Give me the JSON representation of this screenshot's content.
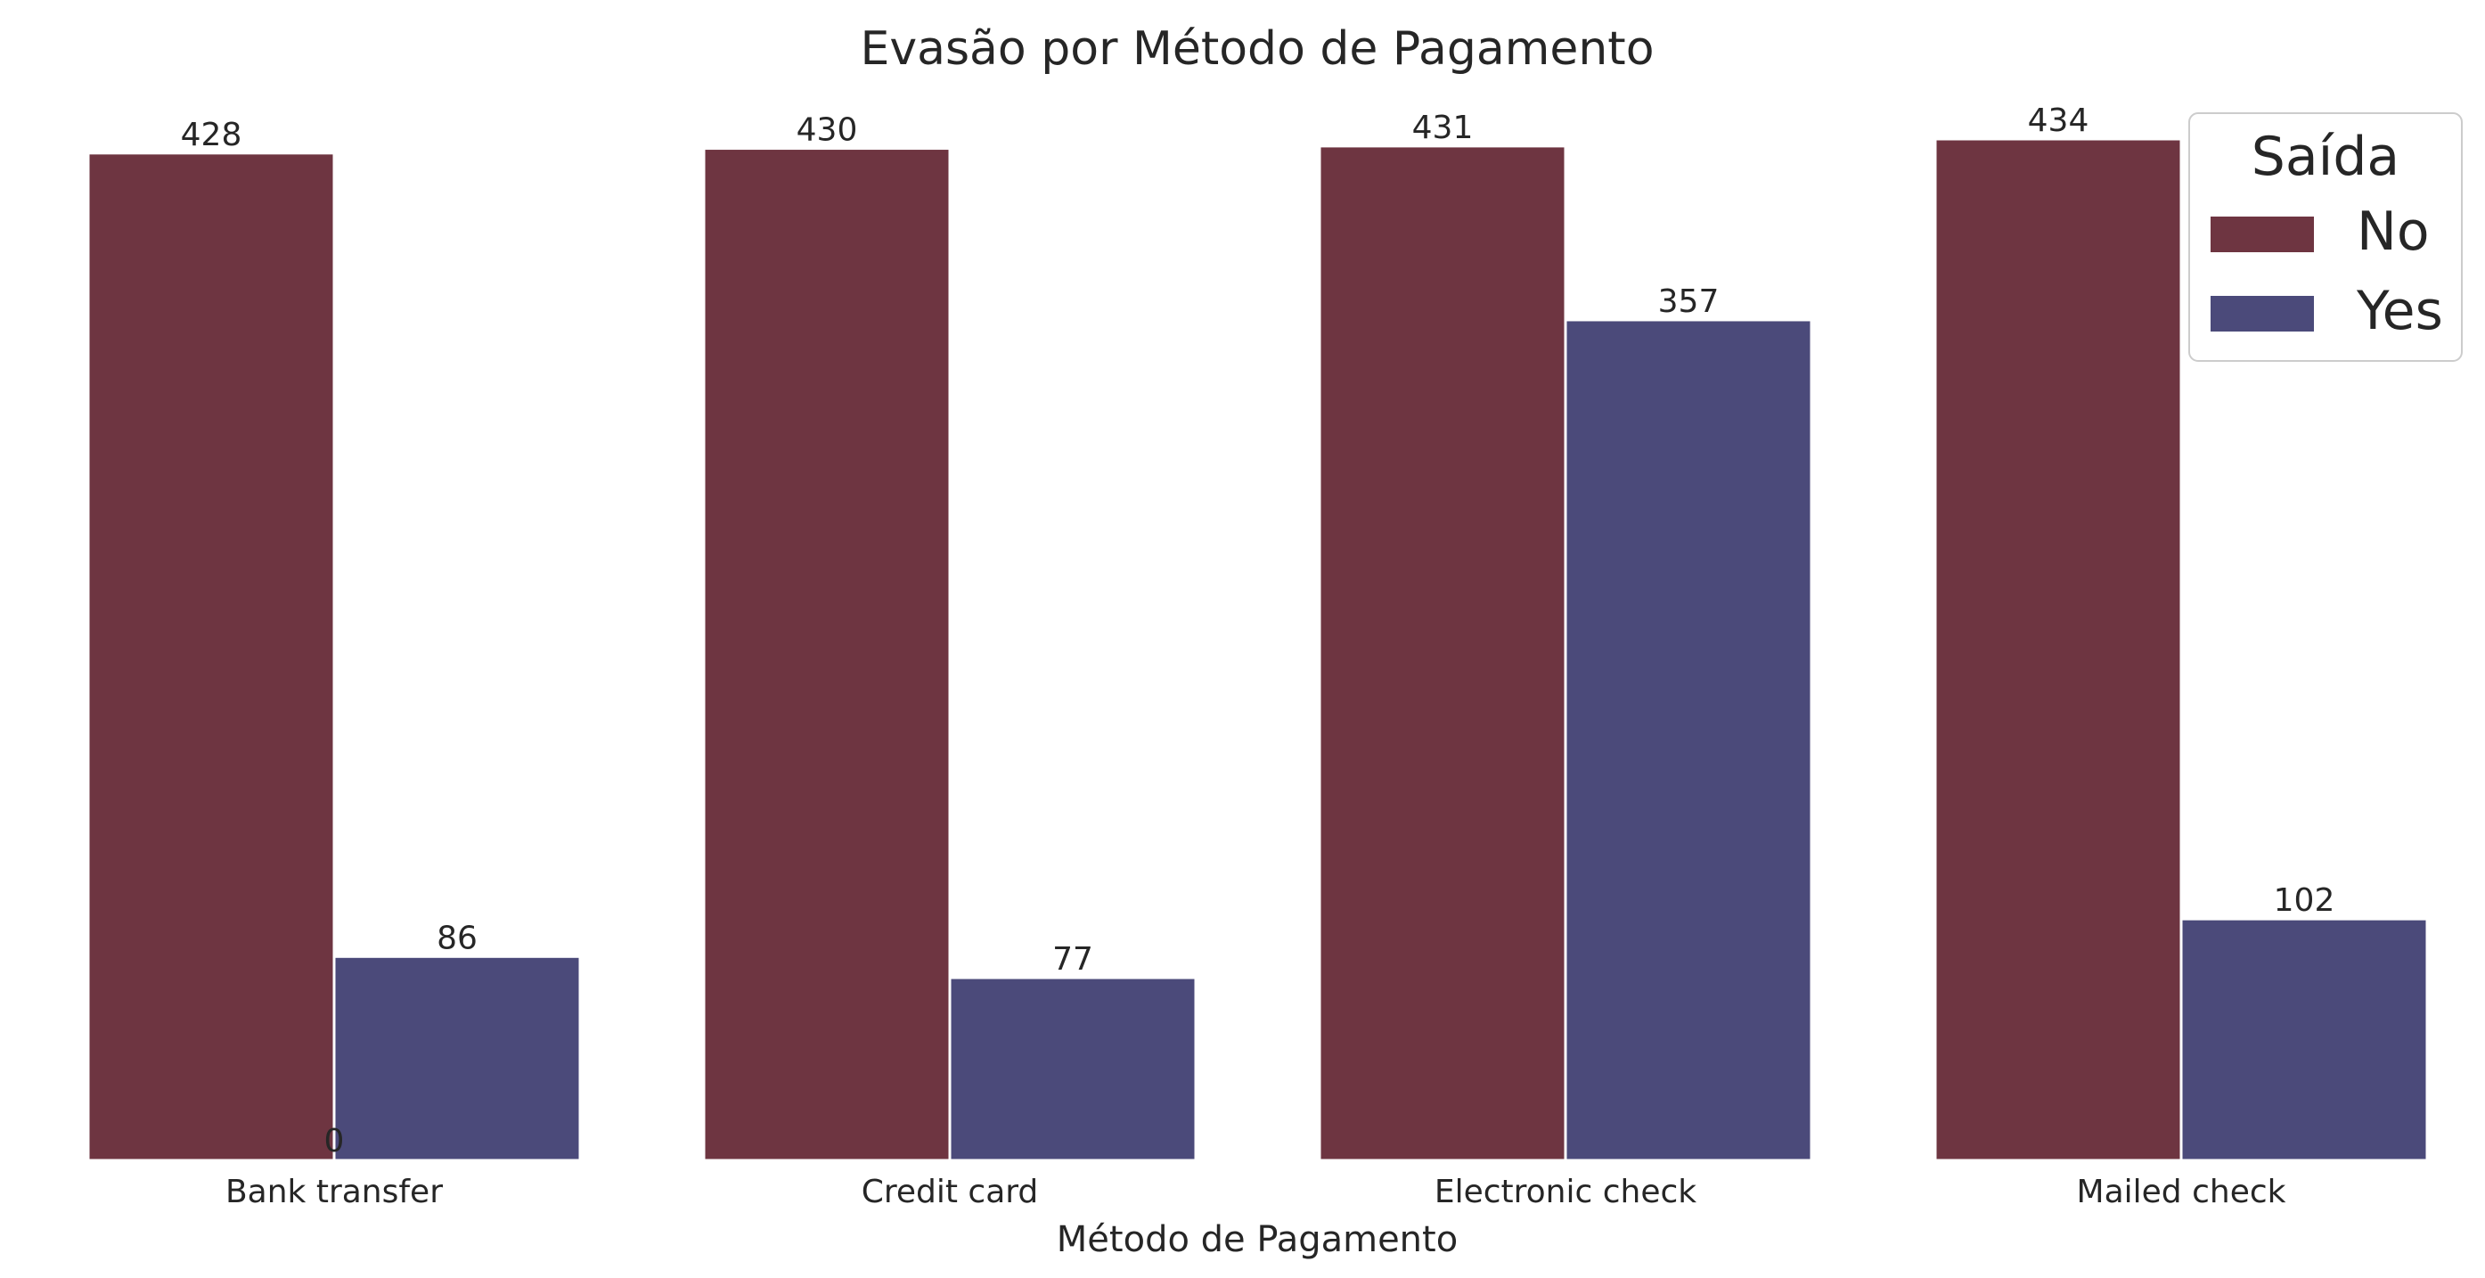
{
  "chart_data": {
    "type": "bar",
    "title": "Evasão por Método de Pagamento",
    "xlabel": "Método de Pagamento",
    "ylabel": "",
    "categories": [
      "Bank transfer",
      "Credit card",
      "Electronic check",
      "Mailed check"
    ],
    "series": [
      {
        "name": "No",
        "values": [
          428,
          430,
          431,
          434
        ],
        "color": "#6e3541"
      },
      {
        "name": "Yes",
        "values": [
          86,
          77,
          357,
          102
        ],
        "color": "#4b4a7a"
      }
    ],
    "data_labels": {
      "No": [
        "428",
        "430",
        "431",
        "434"
      ],
      "Yes": [
        "86",
        "77",
        "357",
        "102"
      ]
    },
    "stray_label": "0",
    "ylim": [
      0,
      455
    ],
    "grid": false,
    "legend": {
      "title": "Saída",
      "placement": "top-right"
    }
  }
}
